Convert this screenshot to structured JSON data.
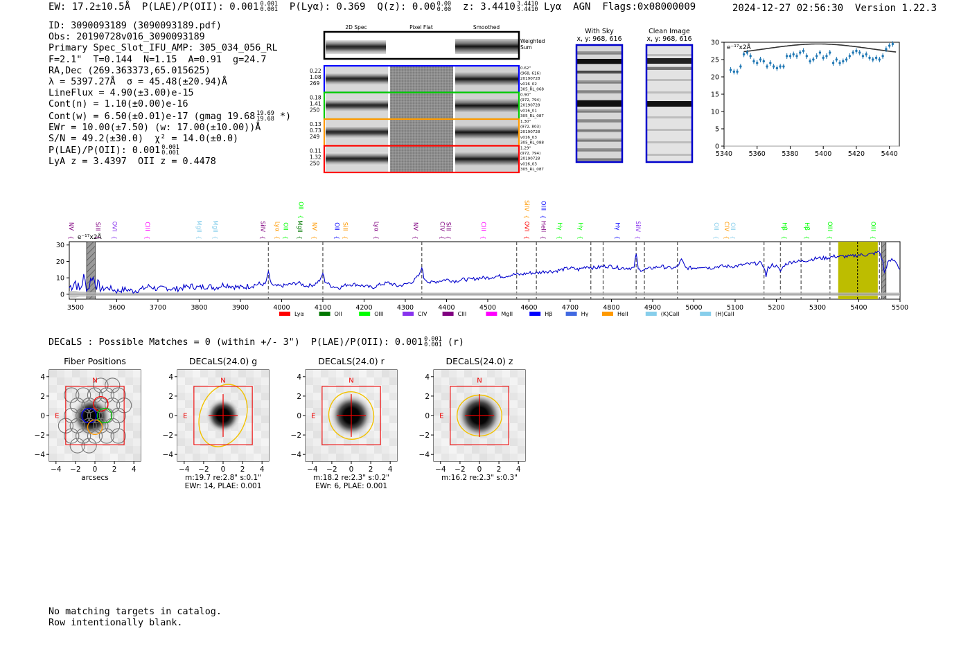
{
  "header": {
    "ew": "EW: 17.2±10.5Å",
    "plae_label": "P(LAE)/P(OII): 0.001",
    "plae_hi": "0.001",
    "plae_lo": "0.001",
    "plya": "P(Lyα): 0.369",
    "qz_label": "Q(z): 0.00",
    "qz_hi": "0.00",
    "qz_lo": "0.00",
    "z_label": "z: 3.4410",
    "z_hi": "3.4410",
    "z_lo": "3.4410",
    "line": "Lyα",
    "agn": "AGN",
    "flags": "Flags:0x08000009",
    "timestamp": "2024-12-27 02:56:30",
    "version": "Version 1.22.3"
  },
  "info": {
    "id": "ID: 3090093189 (3090093189.pdf)",
    "obs": "Obs: 20190728v016_3090093189",
    "primary": "Primary Spec_Slot_IFU_AMP: 305_034_056_RL",
    "params": "F=2.1\"  T=0.144  N=1.15  A=0.91  g=24.7",
    "radec": "RA,Dec (269.363373,65.015625)",
    "lambda": "λ = 5397.27Å  σ = 45.48(±20.94)Å",
    "lineflux": "LineFlux = 4.90(±3.00)e-15",
    "contn": "Cont(n) = 1.10(±0.00)e-16",
    "contw_main": "Cont(w) = 6.50(±0.01)e-17 (gmag 19.68",
    "contw_hi": "19.69",
    "contw_lo": "19.68",
    "contw_end": "*)",
    "ewr": "EWr = 10.00(±7.50) (w: 17.00(±10.00))Å",
    "sn": "S/N = 49.2(±30.0)  χ² = 14.0(±0.0)",
    "plae": "P(LAE)/P(OII): 0.001",
    "plae_hi": "0.001",
    "plae_lo": "0.001",
    "lyaz": "LyA z = 3.4397  OII z = 0.4478"
  },
  "cutouts": {
    "col_labels": [
      "2D Spec",
      "Pixel Flat",
      "Smoothed"
    ],
    "weighted_label": "Weighted Sum",
    "rows": [
      {
        "left": [
          "0.22",
          "1.08",
          "269"
        ],
        "right": [
          "0.62\"",
          "(968, 616)",
          "20190728",
          "v016_02",
          "305_RL_068"
        ],
        "color": "#0000ff"
      },
      {
        "left": [
          "0.18",
          "1.41",
          "250"
        ],
        "right": [
          "0.90\"",
          "(972, 794)",
          "20190728",
          "v016_01",
          "305_RL_087"
        ],
        "color": "#00cc00"
      },
      {
        "left": [
          "0.13",
          "0.73",
          "249"
        ],
        "right": [
          "1.30\"",
          "(972, 803)",
          "20190728",
          "v016_03",
          "305_RL_088"
        ],
        "color": "#ff9900"
      },
      {
        "left": [
          "0.11",
          "1.32",
          "250"
        ],
        "right": [
          "1.29\"",
          "(972, 794)",
          "20190728",
          "v016_03",
          "305_RL_087"
        ],
        "color": "#ff0000"
      }
    ]
  },
  "sky": {
    "with_sky_title": "With Sky",
    "with_sky_xy": "x, y: 968, 616",
    "clean_title": "Clean Image",
    "clean_xy": "x, y: 968, 616"
  },
  "zoom_chart": {
    "ylabel": "e⁻¹⁷x2Å",
    "ylim": [
      0,
      30
    ],
    "xlim": [
      5340,
      5446
    ],
    "xticks": [
      "5340",
      "5360",
      "5380",
      "5400",
      "5420",
      "5440"
    ],
    "yticks": [
      "0",
      "5",
      "10",
      "15",
      "20",
      "25",
      "30"
    ]
  },
  "chart_data": [
    {
      "type": "scatter",
      "title": "",
      "xlabel": "",
      "ylabel": "e⁻¹⁷x2Å",
      "x": [
        5344,
        5346,
        5348,
        5350,
        5352,
        5354,
        5356,
        5358,
        5360,
        5362,
        5364,
        5366,
        5368,
        5370,
        5372,
        5374,
        5376,
        5378,
        5380,
        5382,
        5384,
        5386,
        5388,
        5390,
        5392,
        5394,
        5396,
        5398,
        5400,
        5402,
        5404,
        5406,
        5408,
        5410,
        5412,
        5414,
        5416,
        5418,
        5420,
        5422,
        5424,
        5426,
        5428,
        5430,
        5432,
        5434,
        5436,
        5438,
        5440,
        5442
      ],
      "y": [
        22,
        21.5,
        21.5,
        23,
        26.5,
        27,
        26,
        24.5,
        24,
        25,
        24.5,
        23,
        24,
        23,
        22.5,
        23,
        23,
        26,
        26,
        26.5,
        26,
        27,
        27.5,
        26,
        24.5,
        25,
        26,
        27,
        25.5,
        26,
        27,
        24,
        25,
        24,
        24.5,
        25,
        26,
        27,
        27.5,
        27,
        26,
        26.5,
        25.5,
        25,
        25.5,
        25,
        26,
        28,
        29,
        29.5
      ],
      "model": {
        "peak_x": 5397,
        "amp": 29.5,
        "sigma": 45.48,
        "edge": 26
      },
      "ylim": [
        0,
        30
      ]
    },
    {
      "type": "line",
      "title": "",
      "xlabel": "",
      "ylabel": "",
      "xlim": [
        3485,
        5500
      ],
      "ylim": [
        -3,
        32
      ],
      "xticks": [
        "3500",
        "3600",
        "3700",
        "3800",
        "3900",
        "4000",
        "4100",
        "4200",
        "4300",
        "4400",
        "4500",
        "4600",
        "4700",
        "4800",
        "4900",
        "5000",
        "5100",
        "5200",
        "5300",
        "5400",
        "5500"
      ],
      "yticks": [
        "0",
        "10",
        "20",
        "30"
      ],
      "x": [
        3485,
        3500,
        3510,
        3520,
        3530,
        3540,
        3560,
        3580,
        3600,
        3620,
        3640,
        3660,
        3680,
        3700,
        3720,
        3740,
        3760,
        3780,
        3800,
        3820,
        3840,
        3860,
        3880,
        3900,
        3920,
        3940,
        3960,
        3965,
        3968,
        3972,
        3980,
        4000,
        4020,
        4040,
        4060,
        4080,
        4095,
        4100,
        4105,
        4120,
        4140,
        4160,
        4180,
        4200,
        4220,
        4240,
        4260,
        4280,
        4300,
        4320,
        4335,
        4340,
        4345,
        4360,
        4380,
        4400,
        4420,
        4440,
        4460,
        4480,
        4500,
        4520,
        4540,
        4560,
        4580,
        4600,
        4620,
        4640,
        4660,
        4680,
        4700,
        4720,
        4740,
        4760,
        4780,
        4800,
        4820,
        4840,
        4855,
        4860,
        4865,
        4880,
        4900,
        4920,
        4940,
        4955,
        4960,
        4970,
        4980,
        5000,
        5020,
        5040,
        5060,
        5080,
        5100,
        5120,
        5160,
        5170,
        5175,
        5180,
        5190,
        5200,
        5210,
        5220,
        5240,
        5260,
        5280,
        5300,
        5320,
        5340,
        5360,
        5380,
        5400,
        5420,
        5440,
        5450,
        5458,
        5462,
        5470,
        5480,
        5490,
        5500
      ],
      "y": [
        4,
        8,
        2,
        10,
        3,
        11,
        3,
        4,
        2,
        3,
        2,
        3,
        5,
        3,
        4,
        3,
        4,
        5,
        4,
        5,
        4,
        6,
        5,
        4,
        5,
        6,
        6,
        10,
        14,
        8,
        5,
        5,
        6,
        7,
        5,
        6,
        9,
        13,
        8,
        5,
        4,
        6,
        6,
        5,
        4,
        6,
        7,
        5,
        6,
        8,
        12,
        17,
        10,
        7,
        8,
        9,
        8,
        9,
        9,
        10,
        10,
        11,
        11,
        12,
        12,
        13,
        13,
        14,
        14,
        15,
        16,
        15,
        17,
        16,
        17,
        17,
        16,
        16,
        16,
        25,
        15,
        15,
        16,
        17,
        16,
        16,
        17,
        21,
        16,
        16,
        17,
        16,
        17,
        17,
        17,
        18,
        19,
        17,
        11,
        16,
        18,
        17,
        14,
        18,
        20,
        20,
        21,
        22,
        22,
        23,
        23,
        23,
        24,
        24,
        25,
        26,
        20,
        13,
        19,
        21,
        20,
        15
      ],
      "noise": [
        2,
        2,
        1.5,
        1.5,
        1.2,
        1.2,
        1,
        1,
        1,
        1,
        1,
        1,
        1,
        1,
        1,
        1,
        1,
        1,
        1,
        1,
        1,
        1,
        1,
        1,
        1,
        1,
        1,
        1,
        1,
        1,
        1,
        1,
        1,
        1,
        1,
        1,
        1,
        1,
        1,
        1,
        1,
        1,
        1,
        1,
        1,
        1,
        1,
        1,
        1,
        1,
        1,
        1,
        1,
        1,
        1,
        1,
        1,
        1,
        1,
        1,
        1,
        1,
        1,
        1,
        1,
        1,
        1,
        1,
        1,
        1,
        1,
        1,
        1,
        1,
        1,
        1,
        1,
        1,
        1,
        1,
        1,
        1,
        1,
        1,
        1,
        1,
        1,
        1,
        1,
        1,
        1,
        1,
        1,
        1,
        1,
        1,
        1,
        1,
        1,
        1,
        1,
        1,
        1,
        1,
        1,
        1,
        1,
        1,
        1,
        1,
        1,
        1,
        1,
        1,
        1,
        1,
        1,
        1,
        1,
        1,
        1,
        1,
        1,
        1,
        1,
        1,
        1,
        1
      ],
      "shaded_band": [
        5350,
        5446
      ],
      "line_marker": 5397,
      "gray_bands": [
        [
          3527,
          3548
        ],
        [
          5455,
          5466
        ]
      ],
      "dashed_lines": [
        3968,
        4100,
        4340,
        4570,
        4618,
        4750,
        4780,
        4860,
        4880,
        4960,
        5170,
        5210,
        5260,
        5330,
        5450
      ],
      "ann_label": "e⁻¹⁷x2Å",
      "legend": [
        {
          "label": "Lyα",
          "color": "#ff0000"
        },
        {
          "label": "OII",
          "color": "#007700"
        },
        {
          "label": "OIII",
          "color": "#00ff00"
        },
        {
          "label": "CIV",
          "color": "#8833ee"
        },
        {
          "label": "CIII",
          "color": "#800080"
        },
        {
          "label": "MgII",
          "color": "#ff00ff"
        },
        {
          "label": "Hβ",
          "color": "#0000ff"
        },
        {
          "label": "Hγ",
          "color": "#4169e1"
        },
        {
          "label": "HeII",
          "color": "#ff9900"
        },
        {
          "label": "(K)CaII",
          "color": "#87ceeb"
        },
        {
          "label": "(H)CaII",
          "color": "#87ceeb"
        }
      ],
      "line_ids": [
        {
          "name": "NV",
          "x": 3495,
          "color": "#800080"
        },
        {
          "name": "SiII",
          "x": 3560,
          "color": "#800080"
        },
        {
          "name": "OVI",
          "x": 3600,
          "color": "#8833ee"
        },
        {
          "name": "CIII",
          "x": 3680,
          "color": "#ff00ff"
        },
        {
          "name": "MgII",
          "x": 3805,
          "color": "#87ceeb"
        },
        {
          "name": "MgII",
          "x": 3845,
          "color": "#87ceeb"
        },
        {
          "name": "SiIV",
          "x": 3960,
          "color": "#800080"
        },
        {
          "name": "Lyα",
          "x": 3995,
          "color": "#ff9900"
        },
        {
          "name": "OII",
          "x": 4015,
          "color": "#00ff00"
        },
        {
          "name": "MgII",
          "x": 4050,
          "color": "#007700"
        },
        {
          "name": "OII",
          "x": 4052,
          "color": "#00ff00",
          "high": true
        },
        {
          "name": "NV",
          "x": 4085,
          "color": "#ff9900"
        },
        {
          "name": "OII",
          "x": 4140,
          "color": "#0000ff"
        },
        {
          "name": "SiII",
          "x": 4160,
          "color": "#ff9900"
        },
        {
          "name": "Lyα",
          "x": 4235,
          "color": "#800080"
        },
        {
          "name": "NV",
          "x": 4330,
          "color": "#800080"
        },
        {
          "name": "CIV",
          "x": 4395,
          "color": "#800080"
        },
        {
          "name": "SiII",
          "x": 4410,
          "color": "#800080"
        },
        {
          "name": "CIII",
          "x": 4495,
          "color": "#ff00ff"
        },
        {
          "name": "SiIV",
          "x": 4600,
          "color": "#ff9900",
          "high": true
        },
        {
          "name": "OIII",
          "x": 4640,
          "color": "#0000ff",
          "high": true
        },
        {
          "name": "OVI",
          "x": 4600,
          "color": "#ff0000"
        },
        {
          "name": "HeII",
          "x": 4640,
          "color": "#800080"
        },
        {
          "name": "Hγ",
          "x": 4680,
          "color": "#00ff00"
        },
        {
          "name": "Hγ",
          "x": 4730,
          "color": "#00ff00"
        },
        {
          "name": "Hγ",
          "x": 4820,
          "color": "#0000ff"
        },
        {
          "name": "SiIV",
          "x": 4870,
          "color": "#8833ee"
        },
        {
          "name": "OII",
          "x": 5060,
          "color": "#87ceeb"
        },
        {
          "name": "CIV",
          "x": 5085,
          "color": "#ff9900"
        },
        {
          "name": "OII",
          "x": 5100,
          "color": "#87ceeb"
        },
        {
          "name": "Hβ",
          "x": 5225,
          "color": "#00ff00"
        },
        {
          "name": "Hβ",
          "x": 5280,
          "color": "#00ff00"
        },
        {
          "name": "OIII",
          "x": 5335,
          "color": "#00ff00"
        },
        {
          "name": "OIII",
          "x": 5440,
          "color": "#00ff00"
        }
      ]
    }
  ],
  "decals": {
    "header_main": "DECaLS : Possible Matches = 0 (within +/- 3\")  P(LAE)/P(OII): 0.001",
    "header_hi": "0.001",
    "header_lo": "0.001",
    "header_end": "(r)",
    "panels": [
      {
        "title": "Fiber Positions",
        "xlabel": "arcsecs",
        "caption1": "",
        "caption2": "",
        "type": "fibers"
      },
      {
        "title": "DECaLS(24.0) g",
        "xlabel": "",
        "caption1": "m:19.7  re:2.8\"  s:0.1\"",
        "caption2": "EWr: 14, PLAE: 0.001",
        "type": "g"
      },
      {
        "title": "DECaLS(24.0) r",
        "xlabel": "",
        "caption1": "m:18.2  re:2.3\"  s:0.2\"",
        "caption2": "EWr: 6, PLAE: 0.001",
        "type": "r"
      },
      {
        "title": "DECaLS(24.0) z",
        "xlabel": "",
        "caption1": "m:16.2  re:2.3\"  s:0.3\"",
        "caption2": "",
        "type": "z"
      }
    ],
    "ticks": [
      "−4",
      "−2",
      "0",
      "2",
      "4"
    ],
    "north": "N",
    "east": "E"
  },
  "footer": {
    "line1": "No matching targets in catalog.",
    "line2": "Row intentionally blank."
  }
}
